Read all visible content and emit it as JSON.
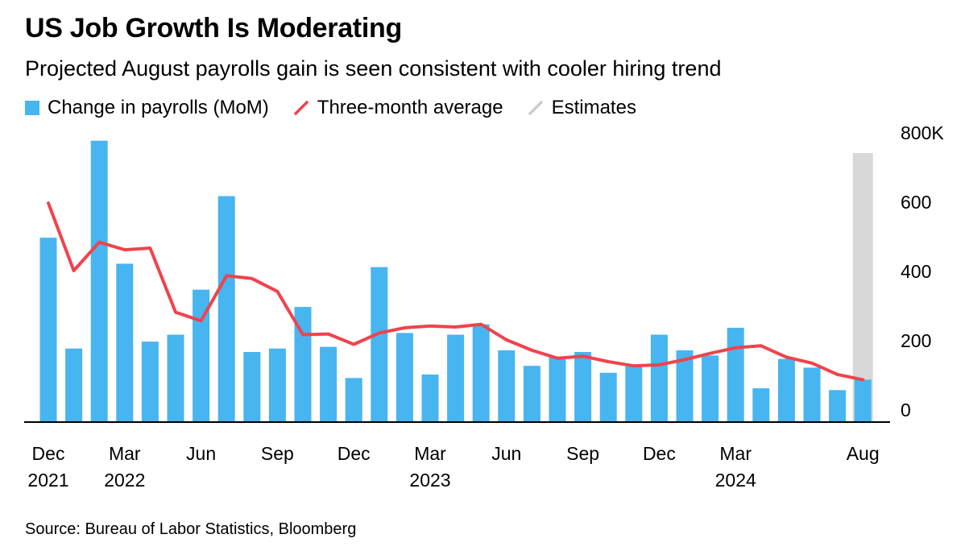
{
  "header": {
    "title": "US Job Growth Is Moderating",
    "subtitle": "Projected August payrolls gain is seen consistent with cooler hiring trend"
  },
  "legend": {
    "items": [
      {
        "label": "Change in payrolls (MoM)",
        "swatch": "square",
        "color": "#47b5f0"
      },
      {
        "label": "Three-month average",
        "swatch": "diagonal-line",
        "color": "#f0434c"
      },
      {
        "label": "Estimates",
        "swatch": "diagonal-line",
        "color": "#cccccc"
      }
    ]
  },
  "chart_data": {
    "type": "bar",
    "title": "US Job Growth Is Moderating",
    "subtitle": "Projected August payrolls gain is seen consistent with cooler hiring trend",
    "unit": "thousands of jobs (K), month-over-month change in US nonfarm payrolls",
    "ylim": [
      0,
      800
    ],
    "grid": false,
    "legend_position": "top",
    "y_ticks": [
      {
        "value": 800,
        "label": "800K"
      },
      {
        "value": 600,
        "label": "600"
      },
      {
        "value": 400,
        "label": "400"
      },
      {
        "value": 200,
        "label": "200"
      },
      {
        "value": 0,
        "label": "0"
      }
    ],
    "months": [
      "Dec 2021",
      "Jan 2022",
      "Feb 2022",
      "Mar 2022",
      "Apr 2022",
      "May 2022",
      "Jun 2022",
      "Jul 2022",
      "Aug 2022",
      "Sep 2022",
      "Oct 2022",
      "Nov 2022",
      "Dec 2022",
      "Jan 2023",
      "Feb 2023",
      "Mar 2023",
      "Apr 2023",
      "May 2023",
      "Jun 2023",
      "Jul 2023",
      "Aug 2023",
      "Sep 2023",
      "Oct 2023",
      "Nov 2023",
      "Dec 2023",
      "Jan 2024",
      "Feb 2024",
      "Mar 2024",
      "Apr 2024",
      "May 2024",
      "Jun 2024",
      "Jul 2024",
      "Aug 2024"
    ],
    "series": [
      {
        "name": "Change in payrolls (MoM)",
        "type": "bar",
        "color": "#47b5f0",
        "values": [
          530,
          210,
          810,
          455,
          230,
          250,
          380,
          650,
          200,
          210,
          330,
          215,
          125,
          445,
          255,
          135,
          250,
          280,
          205,
          160,
          185,
          200,
          140,
          160,
          250,
          205,
          190,
          270,
          95,
          180,
          155,
          90,
          120
        ]
      },
      {
        "name": "Three-month average",
        "type": "line",
        "color": "#f0434c",
        "values": [
          630,
          435,
          517,
          495,
          500,
          315,
          290,
          420,
          412,
          375,
          250,
          252,
          222,
          255,
          270,
          275,
          272,
          280,
          235,
          205,
          182,
          188,
          172,
          160,
          163,
          178,
          196,
          212,
          218,
          185,
          168,
          135,
          120
        ]
      }
    ],
    "estimates": {
      "name": "Estimates",
      "color": "#d8d8d8",
      "month_indices": [
        32
      ]
    },
    "x_ticks": [
      {
        "index": 0,
        "label": "Dec",
        "year": "2021"
      },
      {
        "index": 3,
        "label": "Mar",
        "year": "2022"
      },
      {
        "index": 6,
        "label": "Jun"
      },
      {
        "index": 9,
        "label": "Sep"
      },
      {
        "index": 12,
        "label": "Dec"
      },
      {
        "index": 15,
        "label": "Mar",
        "year": "2023"
      },
      {
        "index": 18,
        "label": "Jun"
      },
      {
        "index": 21,
        "label": "Sep"
      },
      {
        "index": 24,
        "label": "Dec"
      },
      {
        "index": 27,
        "label": "Mar",
        "year": "2024"
      },
      {
        "index": 32,
        "label": "Aug"
      }
    ]
  },
  "source": "Source: Bureau of Labor Statistics, Bloomberg"
}
